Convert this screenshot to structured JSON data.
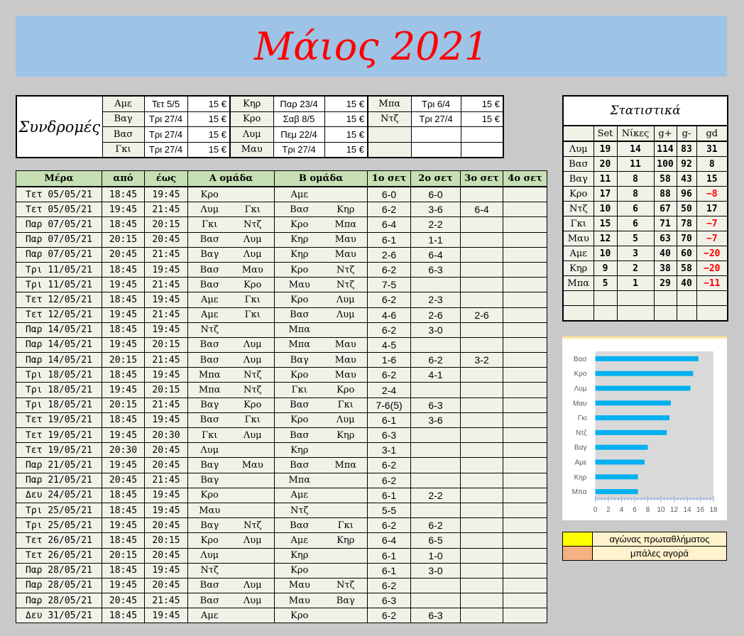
{
  "title": "Μάιος 2021",
  "subscriptions": {
    "label": "Συνδρομές",
    "groups": [
      [
        {
          "name": "Αμε",
          "date": "Τετ 5/5",
          "amount": "15 €"
        },
        {
          "name": "Βαγ",
          "date": "Τρι 27/4",
          "amount": "15 €"
        },
        {
          "name": "Βασ",
          "date": "Τρι 27/4",
          "amount": "15 €"
        },
        {
          "name": "Γκι",
          "date": "Τρι 27/4",
          "amount": "15 €"
        }
      ],
      [
        {
          "name": "Κηρ",
          "date": "Παρ 23/4",
          "amount": "15 €"
        },
        {
          "name": "Κρο",
          "date": "Σαβ 8/5",
          "amount": "15 €"
        },
        {
          "name": "Λυμ",
          "date": "Πεμ 22/4",
          "amount": "15 €"
        },
        {
          "name": "Μαυ",
          "date": "Τρι 27/4",
          "amount": "15 €"
        }
      ],
      [
        {
          "name": "Μπα",
          "date": "Τρι 6/4",
          "amount": "15 €"
        },
        {
          "name": "Ντζ",
          "date": "Τρι 27/4",
          "amount": "15 €"
        },
        {
          "name": "",
          "date": "",
          "amount": ""
        },
        {
          "name": "",
          "date": "",
          "amount": ""
        }
      ]
    ]
  },
  "matches": {
    "headers": [
      "Μέρα",
      "από",
      "έως",
      "Α ομάδα",
      "Β ομάδα",
      "1ο σετ",
      "2ο σετ",
      "3ο σετ",
      "4ο σετ"
    ],
    "rows": [
      [
        "Τετ 05/05/21",
        "18:45",
        "19:45",
        "Κρο",
        "",
        "Αμε",
        "",
        "6-0",
        "6-0",
        "",
        ""
      ],
      [
        "Τετ 05/05/21",
        "19:45",
        "21:45",
        "Λυμ",
        "Γκι",
        "Βασ",
        "Κηρ",
        "6-2",
        "3-6",
        "6-4",
        ""
      ],
      [
        "Παρ 07/05/21",
        "18:45",
        "20:15",
        "Γκι",
        "Ντζ",
        "Κρο",
        "Μπα",
        "6-4",
        "2-2",
        "",
        ""
      ],
      [
        "Παρ 07/05/21",
        "20:15",
        "20:45",
        "Βασ",
        "Λυμ",
        "Κηρ",
        "Μαυ",
        "6-1",
        "1-1",
        "",
        ""
      ],
      [
        "Παρ 07/05/21",
        "20:45",
        "21:45",
        "Βαγ",
        "Λυμ",
        "Κηρ",
        "Μαυ",
        "2-6",
        "6-4",
        "",
        ""
      ],
      [
        "Τρι 11/05/21",
        "18:45",
        "19:45",
        "Βασ",
        "Μαυ",
        "Κρο",
        "Ντζ",
        "6-2",
        "6-3",
        "",
        ""
      ],
      [
        "Τρι 11/05/21",
        "19:45",
        "21:45",
        "Βασ",
        "Κρο",
        "Μαυ",
        "Ντζ",
        "7-5",
        "",
        "",
        ""
      ],
      [
        "Τετ 12/05/21",
        "18:45",
        "19:45",
        "Αμε",
        "Γκι",
        "Κρο",
        "Λυμ",
        "6-2",
        "2-3",
        "",
        ""
      ],
      [
        "Τετ 12/05/21",
        "19:45",
        "21:45",
        "Αμε",
        "Γκι",
        "Βασ",
        "Λυμ",
        "4-6",
        "2-6",
        "2-6",
        ""
      ],
      [
        "Παρ 14/05/21",
        "18:45",
        "19:45",
        "Ντζ",
        "",
        "Μπα",
        "",
        "6-2",
        "3-0",
        "",
        ""
      ],
      [
        "Παρ 14/05/21",
        "19:45",
        "20:15",
        "Βασ",
        "Λυμ",
        "Μπα",
        "Μαυ",
        "4-5",
        "",
        "",
        ""
      ],
      [
        "Παρ 14/05/21",
        "20:15",
        "21:45",
        "Βασ",
        "Λυμ",
        "Βαγ",
        "Μαυ",
        "1-6",
        "6-2",
        "3-2",
        ""
      ],
      [
        "Τρι 18/05/21",
        "18:45",
        "19:45",
        "Μπα",
        "Ντζ",
        "Κρο",
        "Μαυ",
        "6-2",
        "4-1",
        "",
        ""
      ],
      [
        "Τρι 18/05/21",
        "19:45",
        "20:15",
        "Μπα",
        "Ντζ",
        "Γκι",
        "Κρο",
        "2-4",
        "",
        "",
        ""
      ],
      [
        "Τρι 18/05/21",
        "20:15",
        "21:45",
        "Βαγ",
        "Κρο",
        "Βασ",
        "Γκι",
        "7-6(5)",
        "6-3",
        "",
        ""
      ],
      [
        "Τετ 19/05/21",
        "18:45",
        "19:45",
        "Βασ",
        "Γκι",
        "Κρο",
        "Λυμ",
        "6-1",
        "3-6",
        "",
        ""
      ],
      [
        "Τετ 19/05/21",
        "19:45",
        "20:30",
        "Γκι",
        "Λυμ",
        "Βασ",
        "Κηρ",
        "6-3",
        "",
        "",
        ""
      ],
      [
        "Τετ 19/05/21",
        "20:30",
        "20:45",
        "Λυμ",
        "",
        "Κηρ",
        "",
        "3-1",
        "",
        "",
        ""
      ],
      [
        "Παρ 21/05/21",
        "19:45",
        "20:45",
        "Βαγ",
        "Μαυ",
        "Βασ",
        "Μπα",
        "6-2",
        "",
        "",
        ""
      ],
      [
        "Παρ 21/05/21",
        "20:45",
        "21:45",
        "Βαγ",
        "",
        "Μπα",
        "",
        "6-2",
        "",
        "",
        ""
      ],
      [
        "Δευ 24/05/21",
        "18:45",
        "19:45",
        "Κρο",
        "",
        "Αμε",
        "",
        "6-1",
        "2-2",
        "",
        ""
      ],
      [
        "Τρι 25/05/21",
        "18:45",
        "19:45",
        "Μαυ",
        "",
        "Ντζ",
        "",
        "5-5",
        "",
        "",
        ""
      ],
      [
        "Τρι 25/05/21",
        "19:45",
        "20:45",
        "Βαγ",
        "Ντζ",
        "Βασ",
        "Γκι",
        "6-2",
        "6-2",
        "",
        ""
      ],
      [
        "Τετ 26/05/21",
        "18:45",
        "20:15",
        "Κρο",
        "Λυμ",
        "Αμε",
        "Κηρ",
        "6-4",
        "6-5",
        "",
        ""
      ],
      [
        "Τετ 26/05/21",
        "20:15",
        "20:45",
        "Λυμ",
        "",
        "Κηρ",
        "",
        "6-1",
        "1-0",
        "",
        ""
      ],
      [
        "Παρ 28/05/21",
        "18:45",
        "19:45",
        "Ντζ",
        "",
        "Κρο",
        "",
        "6-1",
        "3-0",
        "",
        ""
      ],
      [
        "Παρ 28/05/21",
        "19:45",
        "20:45",
        "Βασ",
        "Λυμ",
        "Μαυ",
        "Ντζ",
        "6-2",
        "",
        "",
        ""
      ],
      [
        "Παρ 28/05/21",
        "20:45",
        "21:45",
        "Βασ",
        "Λυμ",
        "Μαυ",
        "Βαγ",
        "6-3",
        "",
        "",
        ""
      ],
      [
        "Δευ 31/05/21",
        "18:45",
        "19:45",
        "Αμε",
        "",
        "Κρο",
        "",
        "6-2",
        "6-3",
        "",
        ""
      ]
    ]
  },
  "stats": {
    "title": "Στατιστικά",
    "headers": [
      "",
      "Set",
      "Νίκες",
      "g+",
      "g-",
      "gd"
    ],
    "rows": [
      [
        "Λυμ",
        "19",
        "14",
        "114",
        "83",
        "31"
      ],
      [
        "Βασ",
        "20",
        "11",
        "100",
        "92",
        "8"
      ],
      [
        "Βαγ",
        "11",
        "8",
        "58",
        "43",
        "15"
      ],
      [
        "Κρο",
        "17",
        "8",
        "88",
        "96",
        "−8"
      ],
      [
        "Ντζ",
        "10",
        "6",
        "67",
        "50",
        "17"
      ],
      [
        "Γκι",
        "15",
        "6",
        "71",
        "78",
        "−7"
      ],
      [
        "Μαυ",
        "12",
        "5",
        "63",
        "70",
        "−7"
      ],
      [
        "Αμε",
        "10",
        "3",
        "40",
        "60",
        "−20"
      ],
      [
        "Κηρ",
        "9",
        "2",
        "38",
        "58",
        "−20"
      ],
      [
        "Μπα",
        "5",
        "1",
        "29",
        "40",
        "−11"
      ]
    ],
    "negative_color": "#ff0000"
  },
  "chart_data": {
    "type": "bar",
    "orientation": "horizontal",
    "categories": [
      "Βασ",
      "Κρο",
      "Λυμ",
      "Μαυ",
      "Γκι",
      "Ντζ",
      "Βαγ",
      "Αμε",
      "Κηρ",
      "Μπα"
    ],
    "values": [
      15.7,
      14.9,
      14.5,
      11.5,
      11.3,
      10.9,
      8.0,
      7.5,
      6.5,
      6.5
    ],
    "xlim": [
      0,
      18
    ],
    "xticks": [
      "0",
      "2",
      "4",
      "6",
      "8",
      "10",
      "12",
      "14",
      "16",
      "18"
    ],
    "bar_color": "#00b0f0",
    "plot_background": "#d9d9d9",
    "grid": false
  },
  "legend": [
    {
      "color": "#ffff00",
      "label": "αγώνας πρωταθλήματος"
    },
    {
      "color": "#f4b183",
      "label": "μπάλες αγορά"
    }
  ]
}
